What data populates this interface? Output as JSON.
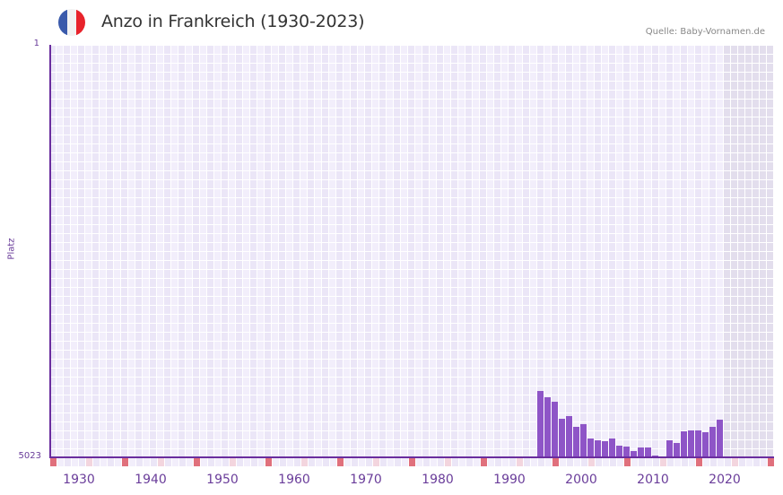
{
  "header": {
    "title": "Anzo in Frankreich (1930-2023)",
    "source": "Quelle: Baby-Vornamen.de",
    "flag": {
      "name": "france-flag-icon",
      "colors": [
        "#3a5aab",
        "#f2f2f2",
        "#e8232b"
      ]
    }
  },
  "colors": {
    "bar": "#8e55c7",
    "axis": "#6a2d9e",
    "cell_a": "#f2eefb",
    "cell_b": "#ebe6f7",
    "future_cell": "#e3deed",
    "marker_decade": "#e0707c",
    "marker_half": "#f3d5de"
  },
  "chart_data": {
    "type": "bar",
    "title": "Anzo in Frankreich (1930-2023)",
    "xlabel": "",
    "ylabel": "Platz",
    "y_inverted": true,
    "ylim": [
      1,
      5023
    ],
    "ytick_labels": [
      "1",
      "5023"
    ],
    "xtick_labels": [
      "1930",
      "1940",
      "1950",
      "1960",
      "1970",
      "1980",
      "1990",
      "2000",
      "2010",
      "2020"
    ],
    "x_range": [
      1928,
      2028
    ],
    "future_shaded_from": 2022,
    "grid": true,
    "legend": null,
    "categories": [
      1996,
      1997,
      1998,
      1999,
      2000,
      2001,
      2002,
      2003,
      2004,
      2005,
      2006,
      2007,
      2008,
      2009,
      2010,
      2011,
      2012,
      2013,
      2014,
      2015,
      2016,
      2017,
      2018,
      2019,
      2020,
      2021
    ],
    "values": [
      4215,
      4291,
      4346,
      4553,
      4521,
      4652,
      4619,
      4794,
      4815,
      4826,
      4794,
      4881,
      4892,
      4946,
      4903,
      4903,
      5001,
      null,
      4815,
      4848,
      4706,
      4695,
      4695,
      4717,
      4652,
      4564
    ]
  },
  "axis": {
    "y_top_label": "1",
    "y_bottom_label": "5023",
    "y_title": "Platz"
  }
}
